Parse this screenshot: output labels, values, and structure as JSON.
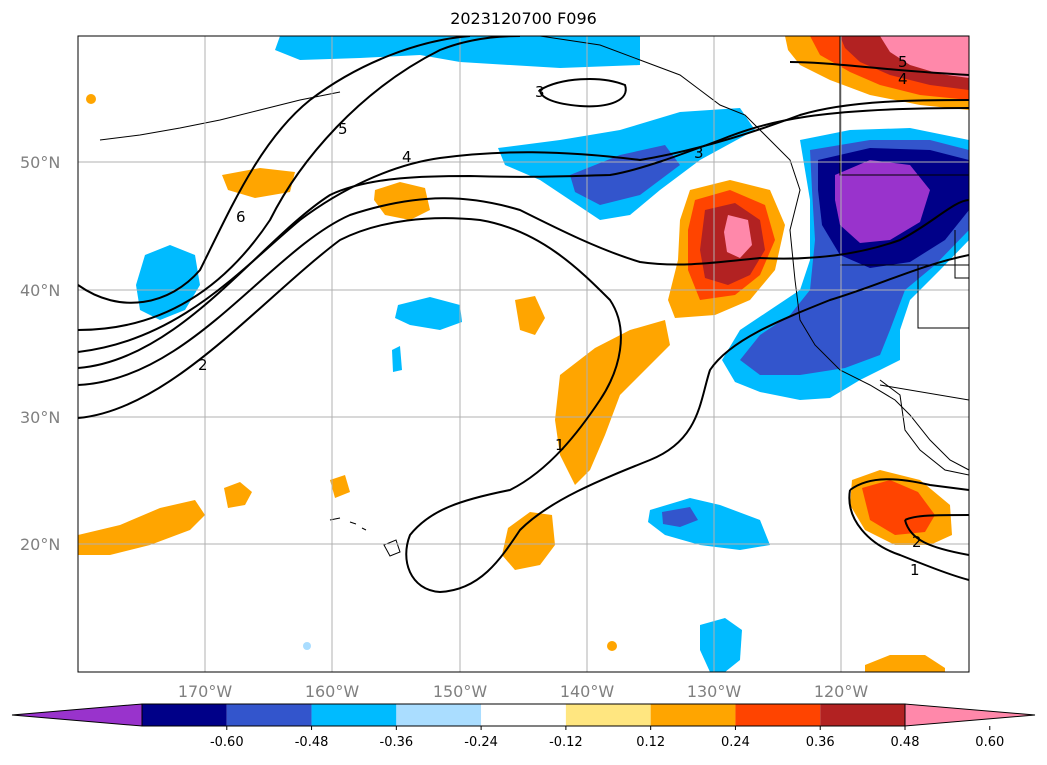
{
  "title": "2023120700 F096",
  "lon_labels": [
    "170°W",
    "160°W",
    "150°W",
    "140°W",
    "130°W",
    "120°W"
  ],
  "lat_labels": [
    "50°N",
    "40°N",
    "30°N",
    "20°N"
  ],
  "colorbar": {
    "ticks": [
      "-0.60",
      "-0.48",
      "-0.36",
      "-0.24",
      "-0.12",
      "0.12",
      "0.24",
      "0.36",
      "0.48",
      "0.60"
    ],
    "colors": [
      "#9933cc",
      "#000088",
      "#3355cc",
      "#00bbff",
      "#aaddff",
      "#ffffff",
      "#ffe680",
      "#ffa500",
      "#ff4400",
      "#b22222",
      "#ff88aa"
    ]
  },
  "contour_labels": [
    "6",
    "5",
    "4",
    "3",
    "3",
    "2",
    "1",
    "1",
    "2",
    "5",
    "4"
  ]
}
